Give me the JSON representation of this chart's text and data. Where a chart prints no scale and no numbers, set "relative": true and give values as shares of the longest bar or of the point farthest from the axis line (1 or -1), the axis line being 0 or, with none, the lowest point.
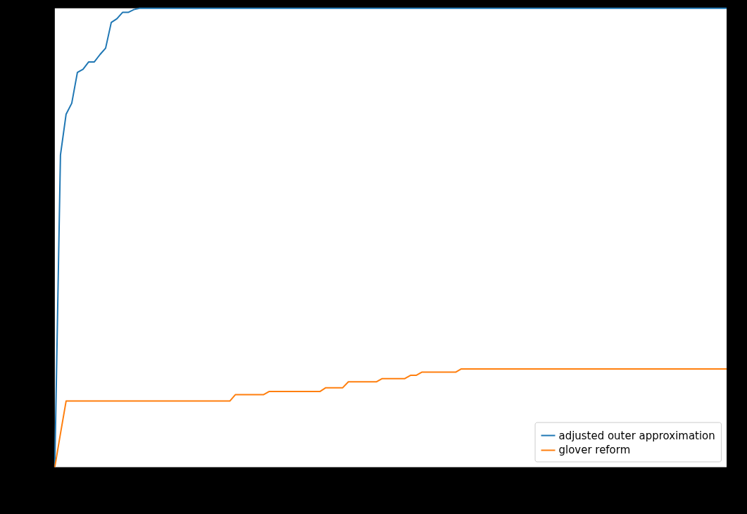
{
  "chart_data": {
    "type": "line",
    "relative": true,
    "tick_labels": false,
    "legend": "bottom right",
    "grid": false,
    "categories": [
      null,
      null,
      null,
      null,
      null,
      null,
      null,
      null,
      null,
      null,
      null,
      null,
      null,
      null,
      null,
      null,
      null,
      null,
      null,
      null,
      null,
      null,
      null,
      null,
      null,
      null,
      null,
      null,
      null,
      null,
      null,
      null,
      null,
      null,
      null,
      null,
      null,
      null,
      null,
      null,
      null,
      null,
      null,
      null,
      null,
      null,
      null,
      null,
      null,
      null,
      null,
      null,
      null,
      null,
      null,
      null,
      null,
      null,
      null,
      null,
      null,
      null,
      null,
      null,
      null,
      null,
      null,
      null,
      null,
      null,
      null,
      null,
      null,
      null,
      null,
      null,
      null,
      null,
      null,
      null,
      null,
      null,
      null,
      null,
      null,
      null,
      null,
      null,
      null,
      null,
      null,
      null,
      null,
      null,
      null,
      null,
      null,
      null,
      null,
      null,
      null,
      null,
      null,
      null,
      null,
      null,
      null,
      null,
      null,
      null,
      null,
      null,
      null,
      null,
      null,
      null,
      null,
      null,
      null,
      null
    ],
    "series": [
      {
        "name": "adjusted outer approximation",
        "color": "#1f77b4",
        "values": [
          0,
          0.68,
          0.769,
          0.793,
          0.86,
          0.867,
          0.883,
          0.883,
          0.899,
          0.913,
          0.969,
          0.977,
          0.991,
          0.991,
          0.997,
          1,
          1,
          1,
          1,
          1,
          1,
          1,
          1,
          1,
          1,
          1,
          1,
          1,
          1,
          1,
          1,
          1,
          1,
          1,
          1,
          1,
          1,
          1,
          1,
          1,
          1,
          1,
          1,
          1,
          1,
          1,
          1,
          1,
          1,
          1,
          1,
          1,
          1,
          1,
          1,
          1,
          1,
          1,
          1,
          1,
          1,
          1,
          1,
          1,
          1,
          1,
          1,
          1,
          1,
          1,
          1,
          1,
          1,
          1,
          1,
          1,
          1,
          1,
          1,
          1,
          1,
          1,
          1,
          1,
          1,
          1,
          1,
          1,
          1,
          1,
          1,
          1,
          1,
          1,
          1,
          1,
          1,
          1,
          1,
          1,
          1,
          1,
          1,
          1,
          1,
          1,
          1,
          1,
          1,
          1,
          1,
          1,
          1,
          1,
          1,
          1,
          1,
          1,
          1,
          1
        ]
      },
      {
        "name": "glover reform",
        "color": "#ff7f0e",
        "values": [
          0,
          0.073,
          0.144,
          0.144,
          0.144,
          0.144,
          0.144,
          0.144,
          0.144,
          0.144,
          0.144,
          0.144,
          0.144,
          0.144,
          0.144,
          0.144,
          0.144,
          0.144,
          0.144,
          0.144,
          0.144,
          0.144,
          0.144,
          0.144,
          0.144,
          0.144,
          0.144,
          0.144,
          0.144,
          0.144,
          0.144,
          0.144,
          0.158,
          0.158,
          0.158,
          0.158,
          0.158,
          0.158,
          0.165,
          0.165,
          0.165,
          0.165,
          0.165,
          0.165,
          0.165,
          0.165,
          0.165,
          0.165,
          0.173,
          0.173,
          0.173,
          0.173,
          0.186,
          0.186,
          0.186,
          0.186,
          0.186,
          0.186,
          0.193,
          0.193,
          0.193,
          0.193,
          0.193,
          0.2,
          0.2,
          0.207,
          0.207,
          0.207,
          0.207,
          0.207,
          0.207,
          0.207,
          0.214,
          0.214,
          0.214,
          0.214,
          0.214,
          0.214,
          0.214,
          0.214,
          0.214,
          0.214,
          0.214,
          0.214,
          0.214,
          0.214,
          0.214,
          0.214,
          0.214,
          0.214,
          0.214,
          0.214,
          0.214,
          0.214,
          0.214,
          0.214,
          0.214,
          0.214,
          0.214,
          0.214,
          0.214,
          0.214,
          0.214,
          0.214,
          0.214,
          0.214,
          0.214,
          0.214,
          0.214,
          0.214,
          0.214,
          0.214,
          0.214,
          0.214,
          0.214,
          0.214,
          0.214,
          0.214,
          0.214,
          0.214
        ]
      }
    ]
  }
}
